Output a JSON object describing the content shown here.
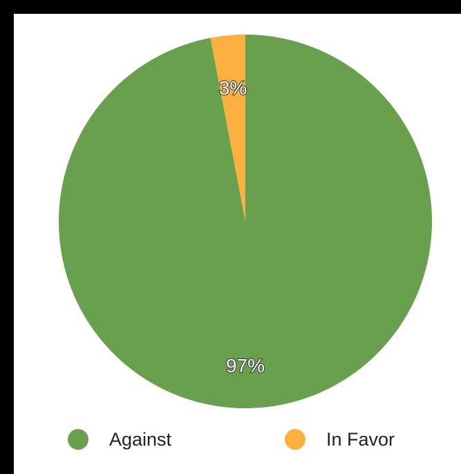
{
  "chart_data": {
    "type": "pie",
    "series": [
      {
        "name": "Against",
        "value": 97,
        "label": "97%",
        "color": "#68a04e"
      },
      {
        "name": "In Favor",
        "value": 3,
        "label": "3%",
        "color": "#fbb040"
      }
    ],
    "legend": "bottom"
  }
}
